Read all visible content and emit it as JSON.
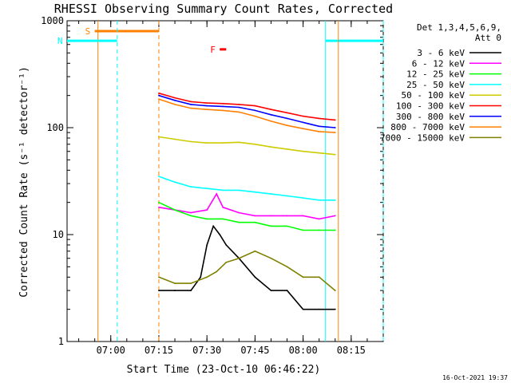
{
  "chart_data": {
    "type": "line",
    "title": "RHESSI Observing Summary Count Rates, Corrected",
    "xlabel": "Start Time (23-Oct-10 06:46:22)",
    "ylabel": "Corrected Count Rate (s⁻¹ detector⁻¹)",
    "yscale": "log",
    "ylim": [
      1,
      1000
    ],
    "xlim": [
      "06:46:22",
      "08:25:00"
    ],
    "x_ticks": [
      "07:00",
      "07:15",
      "07:30",
      "07:45",
      "08:00",
      "08:15"
    ],
    "y_ticks": [
      "1",
      "10",
      "100",
      "1000"
    ],
    "detector_info": [
      "Det 1,3,4,5,6,9,",
      "Att 0"
    ],
    "timestamp": "16-Oct-2021 19:37",
    "legend_position": "right",
    "series": [
      {
        "name": "3 - 6 keV",
        "color": "#000000",
        "x": [
          "07:15",
          "07:20",
          "07:25",
          "07:28",
          "07:30",
          "07:32",
          "07:34",
          "07:36",
          "07:40",
          "07:45",
          "07:50",
          "07:55",
          "08:00",
          "08:05",
          "08:10"
        ],
        "y": [
          3,
          3,
          3,
          4,
          8,
          12,
          10,
          8,
          6,
          4,
          3,
          3,
          2,
          2,
          2
        ]
      },
      {
        "name": "6 - 12 keV",
        "color": "#ff00ff",
        "x": [
          "07:15",
          "07:20",
          "07:25",
          "07:30",
          "07:33",
          "07:35",
          "07:40",
          "07:45",
          "07:50",
          "07:55",
          "08:00",
          "08:05",
          "08:10"
        ],
        "y": [
          18,
          17,
          16,
          17,
          24,
          18,
          16,
          15,
          15,
          15,
          15,
          14,
          15
        ]
      },
      {
        "name": "12 - 25 keV",
        "color": "#00ff00",
        "x": [
          "07:15",
          "07:20",
          "07:25",
          "07:30",
          "07:35",
          "07:40",
          "07:45",
          "07:50",
          "07:55",
          "08:00",
          "08:05",
          "08:10"
        ],
        "y": [
          20,
          17,
          15,
          14,
          14,
          13,
          13,
          12,
          12,
          11,
          11,
          11
        ]
      },
      {
        "name": "25 - 50 keV",
        "color": "#00ffff",
        "x": [
          "07:15",
          "07:20",
          "07:25",
          "07:30",
          "07:35",
          "07:40",
          "07:45",
          "07:50",
          "07:55",
          "08:00",
          "08:05",
          "08:10"
        ],
        "y": [
          35,
          31,
          28,
          27,
          26,
          26,
          25,
          24,
          23,
          22,
          21,
          21
        ]
      },
      {
        "name": "50 - 100 keV",
        "color": "#cccc00",
        "x": [
          "07:15",
          "07:20",
          "07:25",
          "07:30",
          "07:35",
          "07:40",
          "07:45",
          "07:50",
          "07:55",
          "08:00",
          "08:05",
          "08:10"
        ],
        "y": [
          82,
          78,
          74,
          72,
          72,
          73,
          70,
          66,
          63,
          60,
          58,
          56
        ]
      },
      {
        "name": "100 - 300 keV",
        "color": "#ff0000",
        "x": [
          "07:15",
          "07:20",
          "07:25",
          "07:30",
          "07:35",
          "07:40",
          "07:45",
          "07:50",
          "07:55",
          "08:00",
          "08:05",
          "08:10"
        ],
        "y": [
          210,
          190,
          175,
          170,
          168,
          165,
          160,
          148,
          138,
          128,
          122,
          118
        ]
      },
      {
        "name": "300 - 800 keV",
        "color": "#0000ff",
        "x": [
          "07:15",
          "07:20",
          "07:25",
          "07:30",
          "07:35",
          "07:40",
          "07:45",
          "07:50",
          "07:55",
          "08:00",
          "08:05",
          "08:10"
        ],
        "y": [
          200,
          180,
          165,
          160,
          158,
          155,
          145,
          132,
          122,
          112,
          103,
          100
        ]
      },
      {
        "name": "800 - 7000 keV",
        "color": "#ff8000",
        "x": [
          "07:15",
          "07:20",
          "07:25",
          "07:30",
          "07:35",
          "07:40",
          "07:45",
          "07:50",
          "07:55",
          "08:00",
          "08:05",
          "08:10"
        ],
        "y": [
          185,
          165,
          152,
          148,
          145,
          140,
          128,
          115,
          105,
          98,
          92,
          90
        ]
      },
      {
        "name": "7000 - 15000 keV",
        "color": "#808000",
        "x": [
          "07:15",
          "07:20",
          "07:25",
          "07:30",
          "07:33",
          "07:36",
          "07:40",
          "07:45",
          "07:50",
          "07:55",
          "08:00",
          "08:05",
          "08:10"
        ],
        "y": [
          4,
          3.5,
          3.5,
          4,
          4.5,
          5.5,
          6,
          7,
          6,
          5,
          4,
          4,
          3
        ]
      }
    ],
    "markers": [
      {
        "label": "S",
        "color": "#ff8000",
        "level": 800,
        "x_start": "06:55",
        "x_end": "07:15",
        "line_x": [
          "06:56",
          "07:15"
        ],
        "line_style": [
          "solid",
          "dashed"
        ]
      },
      {
        "label": "N",
        "color": "#00ffff",
        "level": 650,
        "x_start": "06:46:22",
        "x_end": "07:02",
        "line_x": [
          "07:02"
        ],
        "line_style": [
          "dashed"
        ]
      },
      {
        "label": "",
        "color": "#00ffff",
        "level": 650,
        "x_start": "08:07",
        "x_end": "08:25",
        "line_x": [
          "08:07",
          "08:25"
        ],
        "line_style": [
          "solid",
          "dashed"
        ]
      },
      {
        "label": "F",
        "color": "#ff0000",
        "level": 540,
        "x_start": "07:34",
        "x_end": "07:36",
        "line_x": [],
        "line_style": []
      },
      {
        "label": "",
        "color": "#ff8000",
        "level": 0,
        "x_start": "",
        "x_end": "",
        "line_x": [
          "08:11"
        ],
        "line_style": [
          "solid"
        ]
      }
    ]
  }
}
